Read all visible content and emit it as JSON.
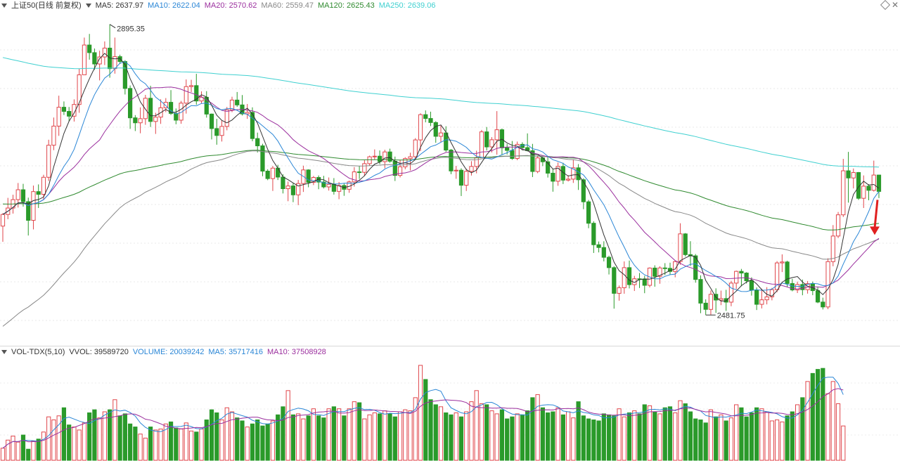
{
  "header": {
    "title": "上证50(日线 前复权)",
    "ma5": "MA5: 2637.97",
    "ma10": "MA10: 2622.04",
    "ma20": "MA20: 2570.62",
    "ma60": "MA60: 2559.47",
    "ma120": "MA120: 2625.43",
    "ma250": "MA250: 2639.06"
  },
  "volume_header": {
    "indicator": "VOL-TDX(5,10)",
    "vvol": "VVOL: 39589720",
    "volume": "VOLUME: 20039242",
    "ma5": "MA5: 35717416",
    "ma10": "MA10: 37508928"
  },
  "colors": {
    "up": "#e0464b",
    "down": "#2a9a2a",
    "ma5": "#333333",
    "ma10": "#2a86d6",
    "ma20": "#9b2f9e",
    "ma60": "#888888",
    "ma120": "#2f8a2f",
    "ma250": "#3fd0d0",
    "arrow": "#e02020"
  },
  "chart_data": [
    {
      "type": "candlestick",
      "title": "上证50(日线 前复权)",
      "annotations": {
        "high": "2895.35",
        "low": "2481.75"
      },
      "ohlc": [
        [
          2608.28,
          2626.79,
          2585.82,
          2624.82
        ],
        [
          2624.82,
          2648.47,
          2618.06,
          2633.97
        ],
        [
          2633.97,
          2652.9,
          2626.06,
          2645.95
        ],
        [
          2645.95,
          2669.58,
          2634.7,
          2659.97
        ],
        [
          2659.97,
          2668.42,
          2635.97,
          2643.04
        ],
        [
          2643.04,
          2648.76,
          2594.87,
          2616.49
        ],
        [
          2616.49,
          2665.97,
          2603.53,
          2657.34
        ],
        [
          2657.34,
          2667.6,
          2634.05,
          2653.49
        ],
        [
          2653.49,
          2681.29,
          2646.16,
          2677.74
        ],
        [
          2677.74,
          2731.15,
          2672.53,
          2723.38
        ],
        [
          2723.38,
          2762.76,
          2716.33,
          2750.57
        ],
        [
          2750.57,
          2793.85,
          2736.68,
          2777.4
        ],
        [
          2777.4,
          2785.65,
          2766.35,
          2771.51
        ],
        [
          2771.51,
          2777.75,
          2757.63,
          2764.69
        ],
        [
          2764.69,
          2788.61,
          2757.02,
          2781.35
        ],
        [
          2781.35,
          2832.4,
          2769.55,
          2823.56
        ],
        [
          2823.56,
          2876.54,
          2823.4,
          2865.93
        ],
        [
          2865.93,
          2881.72,
          2845.14,
          2855.08
        ],
        [
          2855.08,
          2861.02,
          2830.55,
          2838.99
        ],
        [
          2838.99,
          2857.79,
          2815.6,
          2848.96
        ],
        [
          2848.96,
          2871.04,
          2837.44,
          2861.56
        ],
        [
          2861.56,
          2895.35,
          2819.44,
          2832.31
        ],
        [
          2832.31,
          2876.56,
          2825.17,
          2849.4
        ],
        [
          2849.4,
          2852.16,
          2838.97,
          2842.44
        ],
        [
          2842.44,
          2844.43,
          2795.54,
          2804.17
        ],
        [
          2804.17,
          2808.38,
          2746.58,
          2762.33
        ],
        [
          2762.33,
          2766.2,
          2743.53,
          2755.26
        ],
        [
          2755.26,
          2777.15,
          2740.36,
          2761.15
        ],
        [
          2761.15,
          2795.01,
          2752.41,
          2790.16
        ],
        [
          2790.16,
          2807.98,
          2749.32,
          2757.17
        ],
        [
          2757.17,
          2769.52,
          2739.42,
          2763.39
        ],
        [
          2763.39,
          2788.78,
          2753.72,
          2776.6
        ],
        [
          2776.6,
          2790.43,
          2770.43,
          2784.41
        ],
        [
          2784.41,
          2801.79,
          2766.46,
          2768.62
        ],
        [
          2768.62,
          2775.66,
          2753.18,
          2759.02
        ],
        [
          2759.02,
          2786.39,
          2753.86,
          2783.26
        ],
        [
          2783.26,
          2816.93,
          2768.35,
          2806.78
        ],
        [
          2806.78,
          2816.45,
          2798.94,
          2808.16
        ],
        [
          2808.16,
          2824.96,
          2780.97,
          2786.33
        ],
        [
          2786.33,
          2799.96,
          2782.48,
          2791.6
        ],
        [
          2791.6,
          2800.29,
          2762.64,
          2767.67
        ],
        [
          2767.67,
          2768.47,
          2731.61,
          2747.08
        ],
        [
          2747.08,
          2760.88,
          2724.09,
          2737.22
        ],
        [
          2737.22,
          2759.03,
          2728.6,
          2750.15
        ],
        [
          2750.15,
          2777.79,
          2744.58,
          2773.71
        ],
        [
          2773.71,
          2792.36,
          2770.42,
          2787.62
        ],
        [
          2787.62,
          2799.1,
          2777.99,
          2780.7
        ],
        [
          2780.7,
          2794.75,
          2765.7,
          2767.93
        ],
        [
          2767.93,
          2782.03,
          2760.86,
          2770.08
        ],
        [
          2770.08,
          2777.24,
          2728.99,
          2732.84
        ],
        [
          2732.84,
          2741.27,
          2712.98,
          2722.48
        ],
        [
          2722.48,
          2725.41,
          2679.25,
          2686.48
        ],
        [
          2686.48,
          2689.21,
          2673.63,
          2675.89
        ],
        [
          2675.89,
          2693.87,
          2658.29,
          2690.74
        ],
        [
          2690.74,
          2695.46,
          2673.82,
          2678.01
        ],
        [
          2678.01,
          2681.98,
          2654.71,
          2661.49
        ],
        [
          2661.49,
          2671.72,
          2643.66,
          2665.41
        ],
        [
          2665.41,
          2669.84,
          2642.34,
          2652.73
        ],
        [
          2652.73,
          2673.95,
          2638.08,
          2668.84
        ],
        [
          2668.84,
          2694.2,
          2656.86,
          2688.19
        ],
        [
          2688.19,
          2689.1,
          2663.51,
          2670.44
        ],
        [
          2670.44,
          2679.57,
          2666.63,
          2677.47
        ],
        [
          2677.47,
          2680.34,
          2660.76,
          2670.95
        ],
        [
          2670.95,
          2679.8,
          2661.83,
          2664.04
        ],
        [
          2664.04,
          2677.49,
          2658.79,
          2667.72
        ],
        [
          2667.72,
          2676.58,
          2653.12,
          2657.68
        ],
        [
          2657.68,
          2670.99,
          2646.5,
          2666.05
        ],
        [
          2666.05,
          2668.77,
          2651.36,
          2660.65
        ],
        [
          2660.65,
          2673.03,
          2655.66,
          2671.2
        ],
        [
          2671.2,
          2692.26,
          2664.49,
          2685.44
        ],
        [
          2685.44,
          2693.91,
          2675.37,
          2684.81
        ],
        [
          2684.81,
          2701.94,
          2679.47,
          2697.13
        ],
        [
          2697.13,
          2708.52,
          2694.09,
          2706.87
        ],
        [
          2706.87,
          2717.39,
          2703.05,
          2707.75
        ],
        [
          2707.75,
          2715.91,
          2696.33,
          2700.01
        ],
        [
          2700.01,
          2716.9,
          2690.58,
          2713.8
        ],
        [
          2713.8,
          2718.44,
          2698.46,
          2700.56
        ],
        [
          2700.56,
          2707.17,
          2672.46,
          2680.35
        ],
        [
          2680.35,
          2702.66,
          2677.55,
          2692.62
        ],
        [
          2692.62,
          2706.28,
          2689.14,
          2704.37
        ],
        [
          2704.37,
          2712.68,
          2687.38,
          2706.9
        ],
        [
          2706.9,
          2733.42,
          2702.8,
          2730.89
        ],
        [
          2730.89,
          2768.81,
          2714.98,
          2766.84
        ],
        [
          2766.84,
          2772.89,
          2755.92,
          2761.4
        ],
        [
          2761.4,
          2771.08,
          2750.59,
          2755.64
        ],
        [
          2755.64,
          2757.49,
          2726.79,
          2736.04
        ],
        [
          2736.04,
          2751.75,
          2727.75,
          2740.84
        ],
        [
          2740.84,
          2750.35,
          2713.93,
          2716.47
        ],
        [
          2716.47,
          2717.93,
          2682.15,
          2686.74
        ],
        [
          2686.74,
          2694.01,
          2675.59,
          2687.78
        ],
        [
          2687.78,
          2690.49,
          2651.07,
          2666.41
        ],
        [
          2666.41,
          2689.97,
          2658.22,
          2686.19
        ],
        [
          2686.19,
          2700.67,
          2680.21,
          2693.13
        ],
        [
          2693.13,
          2715.55,
          2683.34,
          2705.76
        ],
        [
          2705.76,
          2745.1,
          2705.46,
          2742.37
        ],
        [
          2742.37,
          2749.27,
          2715.9,
          2720.95
        ],
        [
          2720.95,
          2734.85,
          2713.07,
          2731.13
        ],
        [
          2731.13,
          2771.89,
          2709.97,
          2745.36
        ],
        [
          2745.36,
          2747.16,
          2709.73,
          2719.66
        ],
        [
          2719.66,
          2725.21,
          2710.15,
          2715.95
        ],
        [
          2715.95,
          2729.33,
          2702.6,
          2704.48
        ],
        [
          2704.48,
          2728.55,
          2702.06,
          2724.59
        ],
        [
          2724.59,
          2727.52,
          2716.12,
          2719.95
        ],
        [
          2719.95,
          2740.18,
          2714.38,
          2715.56
        ],
        [
          2715.56,
          2725.26,
          2678.03,
          2685.98
        ],
        [
          2685.98,
          2708.85,
          2683.56,
          2705.31
        ],
        [
          2705.31,
          2707.14,
          2693.62,
          2699.78
        ],
        [
          2699.78,
          2706.76,
          2677.35,
          2683.57
        ],
        [
          2683.57,
          2689.28,
          2657.22,
          2672.12
        ],
        [
          2672.12,
          2698.85,
          2665.6,
          2693.16
        ],
        [
          2693.16,
          2698.32,
          2668.11,
          2673.69
        ],
        [
          2673.69,
          2680.77,
          2671.71,
          2675.11
        ],
        [
          2675.11,
          2703.23,
          2669.66,
          2691.18
        ],
        [
          2691.18,
          2696.5,
          2659.72,
          2674.21
        ],
        [
          2674.21,
          2676.35,
          2632.34,
          2642.84
        ],
        [
          2642.84,
          2645.45,
          2605.21,
          2612.31
        ],
        [
          2612.31,
          2615.17,
          2570.03,
          2581.77
        ],
        [
          2581.77,
          2586.35,
          2570.82,
          2577.8
        ],
        [
          2577.8,
          2586.69,
          2558.03,
          2563.87
        ],
        [
          2563.87,
          2566.13,
          2539.42,
          2549.14
        ],
        [
          2549.14,
          2551.24,
          2490.81,
          2512.59
        ],
        [
          2512.59,
          2523.69,
          2502.15,
          2520.59
        ],
        [
          2520.59,
          2558.03,
          2512.03,
          2549.13
        ],
        [
          2549.13,
          2559.24,
          2519.58,
          2524.98
        ],
        [
          2524.98,
          2537.42,
          2515.94,
          2533.29
        ],
        [
          2533.29,
          2541.56,
          2520.17,
          2533.14
        ],
        [
          2533.14,
          2537.45,
          2512.79,
          2524.0
        ],
        [
          2524.0,
          2549.49,
          2521.11,
          2548.55
        ],
        [
          2548.55,
          2552.47,
          2522.05,
          2536.81
        ],
        [
          2536.81,
          2551.12,
          2526.2,
          2548.74
        ],
        [
          2548.74,
          2555.57,
          2538.57,
          2548.18
        ],
        [
          2548.18,
          2556.21,
          2539.01,
          2543.73
        ],
        [
          2543.73,
          2559.43,
          2535.38,
          2557.73
        ],
        [
          2557.73,
          2612.3,
          2553.34,
          2597.2
        ],
        [
          2597.2,
          2598.33,
          2565.15,
          2567.66
        ],
        [
          2567.66,
          2586.77,
          2551.62,
          2565.94
        ],
        [
          2565.94,
          2568.48,
          2527.76,
          2532.34
        ],
        [
          2532.34,
          2538.18,
          2484.33,
          2498.63
        ],
        [
          2498.63,
          2504.01,
          2481.75,
          2489.75
        ],
        [
          2489.75,
          2516.65,
          2482.19,
          2511.24
        ],
        [
          2511.24,
          2519.69,
          2484.73,
          2503.04
        ],
        [
          2503.04,
          2516.52,
          2495.79,
          2505.14
        ],
        [
          2505.14,
          2517.58,
          2487.59,
          2500.06
        ],
        [
          2500.06,
          2530.38,
          2494.23,
          2527.15
        ],
        [
          2527.15,
          2544.94,
          2518.65,
          2543.86
        ],
        [
          2543.86,
          2547.34,
          2522.66,
          2541.46
        ],
        [
          2541.46,
          2542.69,
          2526.59,
          2530.46
        ],
        [
          2530.46,
          2535.45,
          2509.35,
          2517.17
        ],
        [
          2517.17,
          2520.98,
          2488.84,
          2496.96
        ],
        [
          2496.96,
          2519.12,
          2491.11,
          2503.37
        ],
        [
          2503.37,
          2521.36,
          2496.86,
          2507.53
        ],
        [
          2507.53,
          2520.35,
          2502.64,
          2517.79
        ],
        [
          2517.79,
          2558.46,
          2514.21,
          2555.88
        ],
        [
          2555.88,
          2568.09,
          2542.86,
          2557.22
        ],
        [
          2557.22,
          2558.97,
          2521.25,
          2526.58
        ],
        [
          2526.58,
          2533.19,
          2515.48,
          2517.44
        ],
        [
          2517.44,
          2529.2,
          2513.01,
          2525.15
        ],
        [
          2525.15,
          2532.21,
          2509.87,
          2517.8
        ],
        [
          2517.8,
          2530.15,
          2512.17,
          2526.39
        ],
        [
          2526.39,
          2529.33,
          2509.95,
          2516.42
        ],
        [
          2516.42,
          2521.34,
          2498.57,
          2500.16
        ],
        [
          2500.16,
          2506.45,
          2489.62,
          2493.21
        ],
        [
          2493.21,
          2562.48,
          2490.08,
          2557.69
        ],
        [
          2557.69,
          2609.72,
          2551.11,
          2594.14
        ],
        [
          2594.14,
          2628.35,
          2591.21,
          2624.31
        ],
        [
          2624.31,
          2703.92,
          2621.21,
          2686.96
        ],
        [
          2686.96,
          2713.86,
          2641.65,
          2676.77
        ],
        [
          2676.77,
          2690.23,
          2661.88,
          2684.51
        ],
        [
          2684.51,
          2685.27,
          2645.52,
          2647.84
        ],
        [
          2647.84,
          2680.38,
          2634.05,
          2665.12
        ],
        [
          2665.12,
          2667.88,
          2645.03,
          2659.17
        ],
        [
          2659.17,
          2701.45,
          2657.4,
          2680.91
        ],
        [
          2680.91,
          2681.38,
          2648.12,
          2657.6
        ]
      ],
      "volume": [
        12,
        20,
        24,
        18,
        25,
        11,
        19,
        21,
        28,
        43,
        40,
        44,
        52,
        35,
        33,
        30,
        37,
        47,
        50,
        42,
        48,
        50,
        60,
        44,
        46,
        36,
        33,
        26,
        22,
        33,
        30,
        31,
        36,
        38,
        32,
        31,
        37,
        29,
        28,
        31,
        40,
        50,
        47,
        40,
        52,
        48,
        42,
        39,
        33,
        36,
        40,
        34,
        36,
        39,
        45,
        53,
        69,
        45,
        46,
        41,
        44,
        51,
        44,
        42,
        51,
        53,
        51,
        44,
        51,
        58,
        57,
        41,
        45,
        47,
        46,
        49,
        46,
        43,
        48,
        50,
        49,
        62,
        94,
        80,
        60,
        55,
        53,
        47,
        45,
        47,
        43,
        48,
        58,
        69,
        56,
        55,
        49,
        46,
        50,
        41,
        43,
        46,
        45,
        49,
        62,
        65,
        52,
        47,
        48,
        52,
        45,
        48,
        42,
        58,
        44,
        41,
        40,
        39,
        46,
        45,
        44,
        51,
        43,
        47,
        49,
        46,
        55,
        54,
        48,
        46,
        52,
        53,
        47,
        59,
        56,
        48,
        41,
        40,
        37,
        50,
        43,
        45,
        39,
        42,
        55,
        52,
        43,
        47,
        52,
        51,
        48,
        39,
        40,
        38,
        44,
        48,
        55,
        62,
        78,
        86,
        90,
        91,
        66,
        78,
        56,
        34
      ],
      "ylim": [
        2450,
        2910
      ]
    }
  ]
}
